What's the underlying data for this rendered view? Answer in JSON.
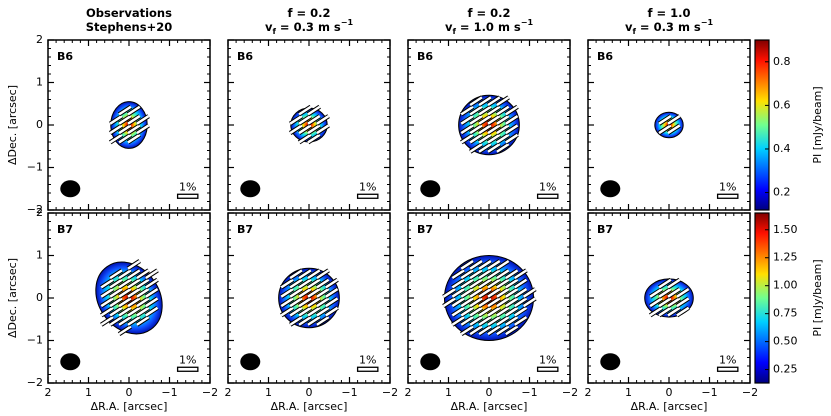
{
  "column_titles": [
    [
      [
        {
          "text": "Observations"
        }
      ],
      [
        {
          "text": "Stephens+20"
        }
      ]
    ],
    [
      [
        {
          "text": "f = 0.2"
        }
      ],
      [
        {
          "text": "v"
        },
        {
          "text": "f",
          "shift": "sub"
        },
        {
          "text": " = 0.3 m s"
        },
        {
          "text": "−1",
          "shift": "sup"
        }
      ]
    ],
    [
      [
        {
          "text": "f = 0.2"
        }
      ],
      [
        {
          "text": "v"
        },
        {
          "text": "f",
          "shift": "sub"
        },
        {
          "text": " = 1.0 m s"
        },
        {
          "text": "−1",
          "shift": "sup"
        }
      ]
    ],
    [
      [
        {
          "text": "f = 1.0"
        }
      ],
      [
        {
          "text": "v"
        },
        {
          "text": "f",
          "shift": "sub"
        },
        {
          "text": " = 0.3 m s"
        },
        {
          "text": "−1",
          "shift": "sup"
        }
      ]
    ]
  ],
  "rows": [
    {
      "band": "B6",
      "band_color": "#e0405a",
      "colorbar": {
        "label": "PI [mJy/beam]",
        "lim": [
          0.12,
          0.9
        ],
        "ticks": [
          0.2,
          0.4,
          0.6,
          0.8
        ]
      }
    },
    {
      "band": "B7",
      "band_color": "#2e4a6e",
      "colorbar": {
        "label": "PI [mJy/beam]",
        "lim": [
          0.13,
          1.65
        ],
        "ticks": [
          0.25,
          {
            "value": 0.5,
            "label": "0.50"
          },
          {
            "value": 0.75,
            "label": "0.75"
          },
          {
            "value": 1,
            "label": "1.00"
          },
          {
            "value": 1.25,
            "label": "1.25"
          },
          {
            "value": 1.5,
            "label": "1.50"
          }
        ]
      }
    }
  ],
  "axes": {
    "xlabel": "ΔR.A. [arcsec]",
    "ylabel": "ΔDec. [arcsec]",
    "xlim": [
      2,
      -2
    ],
    "ylim": [
      -2,
      2
    ],
    "xticks": [
      2,
      1,
      0,
      {
        "value": -1,
        "label": "−1"
      },
      {
        "value": -2,
        "label": "−2"
      }
    ],
    "yticks": [
      {
        "value": -2,
        "label": "−2"
      },
      {
        "value": -1,
        "label": "−1"
      },
      0,
      1,
      2
    ]
  },
  "scale_bar_label": "1%"
}
